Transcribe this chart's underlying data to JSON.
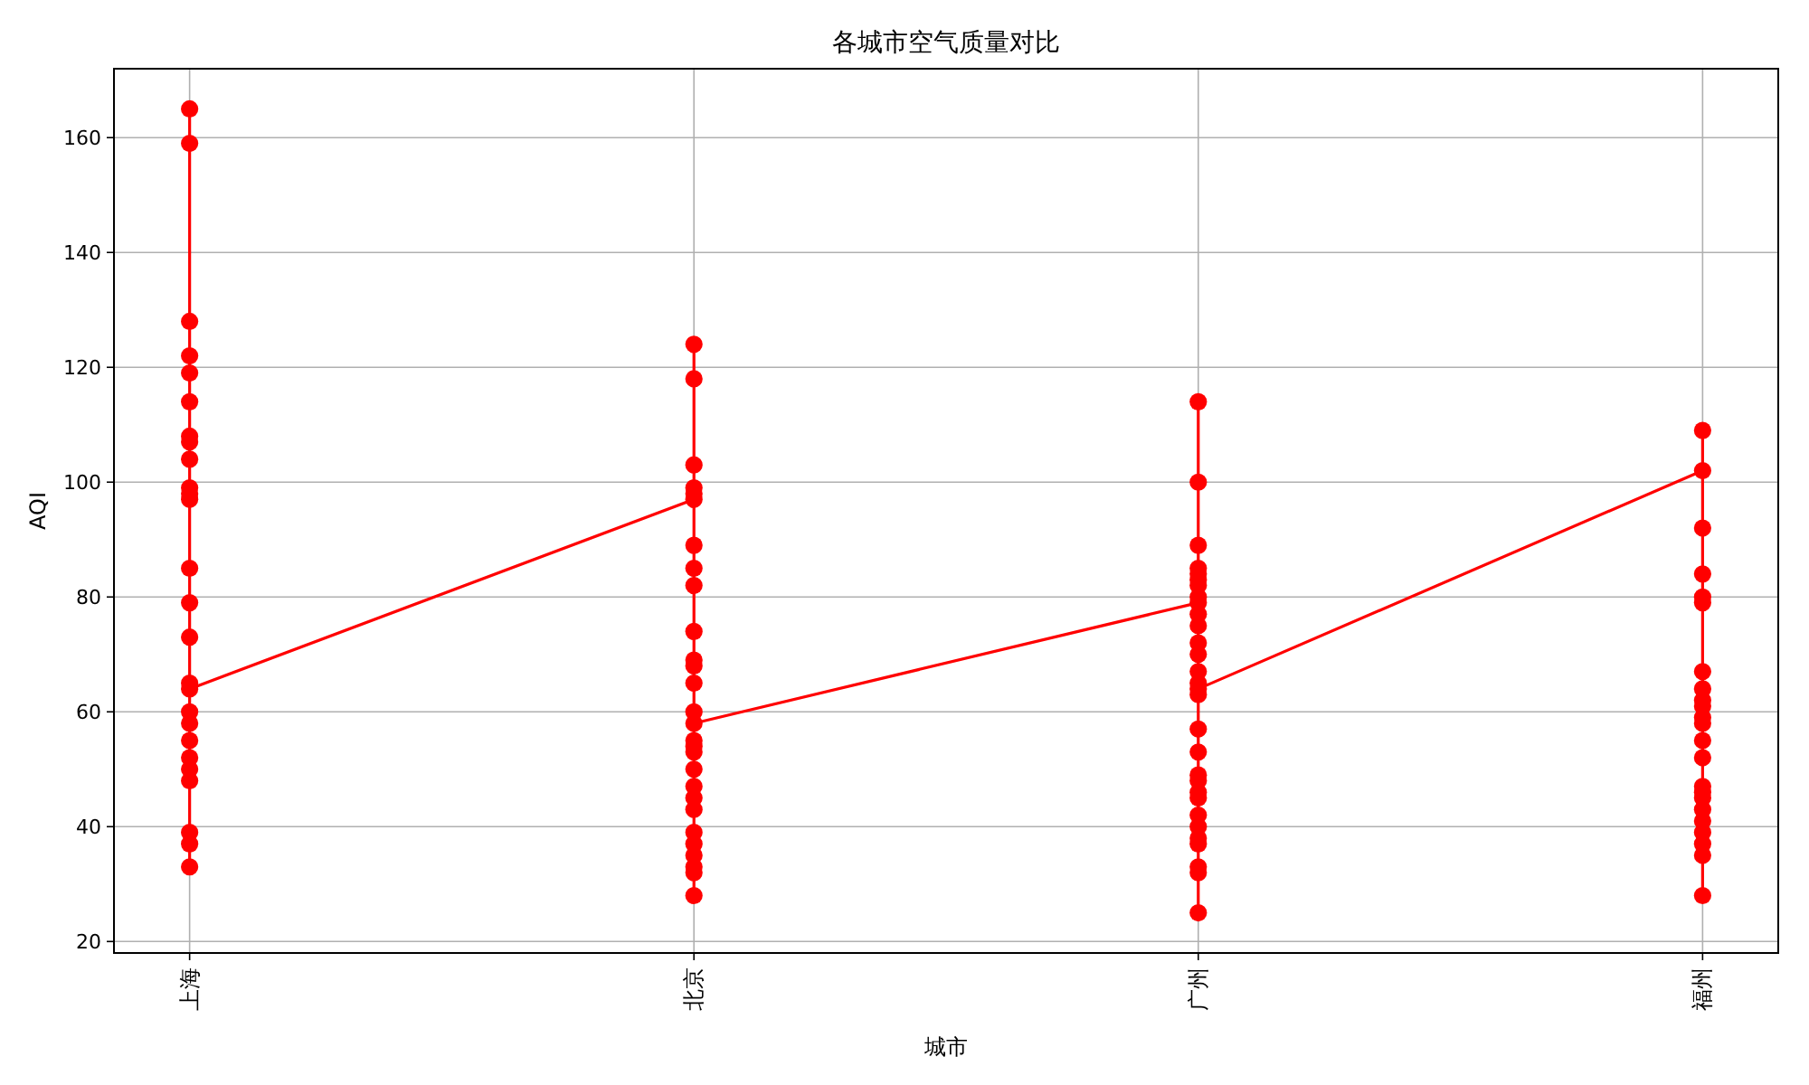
{
  "chart_data": {
    "type": "line",
    "title": "各城市空气质量对比",
    "xlabel": "城市",
    "ylabel": "AQI",
    "categories": [
      "上海",
      "北京",
      "广州",
      "福州"
    ],
    "series": [
      {
        "color": "#ff0000",
        "x": [
          "上海",
          "上海",
          "上海",
          "上海",
          "上海",
          "上海",
          "上海",
          "上海",
          "上海",
          "上海",
          "上海",
          "上海",
          "上海",
          "上海",
          "上海",
          "上海",
          "上海",
          "上海",
          "上海",
          "上海",
          "上海",
          "上海",
          "上海",
          "上海",
          "上海",
          "上海",
          "北京",
          "北京",
          "北京",
          "北京",
          "北京",
          "北京",
          "北京",
          "北京",
          "北京",
          "北京",
          "北京",
          "北京",
          "北京",
          "北京",
          "北京",
          "北京",
          "北京",
          "北京",
          "北京",
          "北京",
          "北京",
          "北京",
          "北京",
          "北京",
          "北京",
          "北京",
          "北京",
          "北京",
          "广州",
          "广州",
          "广州",
          "广州",
          "广州",
          "广州",
          "广州",
          "广州",
          "广州",
          "广州",
          "广州",
          "广州",
          "广州",
          "广州",
          "广州",
          "广州",
          "广州",
          "广州",
          "广州",
          "广州",
          "广州",
          "广州",
          "广州",
          "广州",
          "广州",
          "广州",
          "广州",
          "广州",
          "广州",
          "广州",
          "福州",
          "福州",
          "福州",
          "福州",
          "福州",
          "福州",
          "福州",
          "福州",
          "福州",
          "福州",
          "福州",
          "福州",
          "福州",
          "福州",
          "福州",
          "福州",
          "福州",
          "福州",
          "福州",
          "福州",
          "福州",
          "福州",
          "福州"
        ],
        "values": [
          165,
          159,
          128,
          122,
          119,
          114,
          108,
          107,
          104,
          99,
          98,
          97,
          85,
          79,
          73,
          65,
          60,
          58,
          55,
          52,
          50,
          48,
          39,
          37,
          33,
          64,
          97,
          124,
          118,
          103,
          99,
          98,
          89,
          85,
          82,
          74,
          69,
          68,
          65,
          60,
          55,
          54,
          53,
          50,
          47,
          45,
          43,
          39,
          37,
          35,
          33,
          32,
          28,
          58,
          79,
          114,
          100,
          89,
          85,
          84,
          83,
          82,
          80,
          77,
          75,
          72,
          70,
          67,
          65,
          63,
          57,
          53,
          49,
          48,
          46,
          45,
          42,
          40,
          38,
          37,
          33,
          32,
          25,
          64,
          102,
          109,
          92,
          84,
          80,
          79,
          67,
          64,
          62,
          61,
          59,
          58,
          55,
          52,
          47,
          46,
          45,
          43,
          41,
          39,
          37,
          35,
          28
        ]
      }
    ],
    "marker": "circle",
    "grid": true,
    "ylim": [
      18,
      172
    ],
    "yticks": [
      20,
      40,
      60,
      80,
      100,
      120,
      140,
      160
    ]
  }
}
